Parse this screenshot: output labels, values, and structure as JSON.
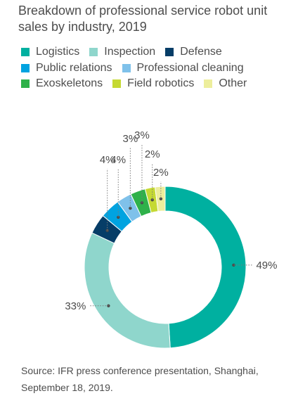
{
  "chart_data": {
    "type": "pie",
    "title": "Breakdown of professional service robot unit sales by industry, 2019",
    "categories": [
      "Logistics",
      "Inspection",
      "Defense",
      "Public relations",
      "Professional cleaning",
      "Exoskeletons",
      "Field robotics",
      "Other"
    ],
    "values": [
      49,
      33,
      4,
      4,
      3,
      3,
      2,
      2
    ],
    "value_labels": [
      "49%",
      "33%",
      "4%",
      "4%",
      "3%",
      "3%",
      "2%",
      "2%"
    ],
    "colors": [
      "#00B0A0",
      "#8FD6CC",
      "#063D67",
      "#00A3E0",
      "#7FC1EA",
      "#2FB14A",
      "#C5D933",
      "#EDEE9C"
    ],
    "legend_position": "top"
  },
  "source": {
    "line1": "Source: IFR press conference presentation, Shanghai,",
    "line2": "September 18, 2019."
  }
}
